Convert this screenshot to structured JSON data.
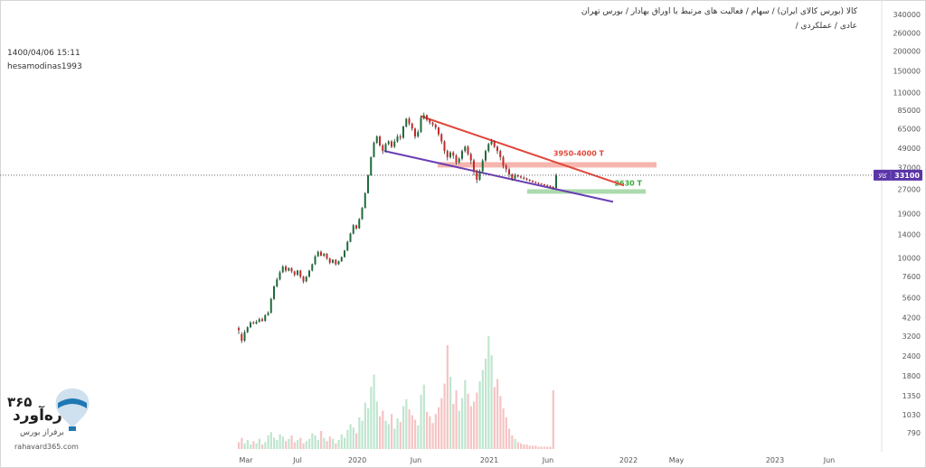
{
  "header": {
    "symbol_line": "کالا (بورس کالای ایران) / سهام / فعالیت های مرتبط با اوراق بهادار / بورس تهران",
    "sub_line": "عادی / عملکردی /",
    "datetime": "1400/04/06 15:11",
    "author": "hesamodinas1993"
  },
  "watermark": {
    "number": "۳۶۵",
    "brand": "ره‌آورد",
    "subtitle": "برفراز بورس",
    "url": "rahavard365.com"
  },
  "price_marker": {
    "tag": "کالا",
    "value": "33100"
  },
  "chart_data": {
    "type": "candlestick",
    "scale": "log",
    "ylim": [
      600,
      420000
    ],
    "y_ticks": [
      340000,
      260000,
      200000,
      150000,
      110000,
      85000,
      65000,
      49000,
      37000,
      27000,
      19000,
      14000,
      10000,
      7600,
      5600,
      4200,
      3200,
      2400,
      1800,
      1350,
      1030,
      790
    ],
    "x_ticks": [
      "Mar",
      "Jul",
      "2020",
      "Jun",
      "2021",
      "Jun",
      "2022",
      "May",
      "2023",
      "Jun"
    ],
    "last_price": 33100,
    "candles": [
      [
        3600,
        3500,
        3700,
        3300
      ],
      [
        3300,
        3000,
        3400,
        2900
      ],
      [
        3000,
        3400,
        3500,
        2950
      ],
      [
        3400,
        3650,
        3700,
        3350
      ],
      [
        3650,
        3900,
        4000,
        3600
      ],
      [
        3900,
        3850,
        4000,
        3800
      ],
      [
        3850,
        3950,
        4050,
        3800
      ],
      [
        3950,
        4100,
        4200,
        3900
      ],
      [
        4100,
        4000,
        4200,
        3950
      ],
      [
        4000,
        4350,
        4400,
        3950
      ],
      [
        4350,
        4500,
        4600,
        4300
      ],
      [
        4500,
        5500,
        5600,
        4450
      ],
      [
        5500,
        6600,
        6700,
        5400
      ],
      [
        6600,
        7300,
        7500,
        6500
      ],
      [
        7300,
        8100,
        8300,
        7200
      ],
      [
        8100,
        8800,
        9000,
        8000
      ],
      [
        8800,
        8300,
        9000,
        8100
      ],
      [
        8300,
        8600,
        8700,
        8200
      ],
      [
        8600,
        8200,
        8700,
        8000
      ],
      [
        8200,
        7800,
        8300,
        7600
      ],
      [
        7800,
        8300,
        8400,
        7700
      ],
      [
        8300,
        7600,
        8400,
        7400
      ],
      [
        7600,
        7100,
        7700,
        6900
      ],
      [
        7100,
        7600,
        7700,
        7000
      ],
      [
        7600,
        8300,
        8400,
        7500
      ],
      [
        8300,
        9100,
        9200,
        8200
      ],
      [
        9100,
        10200,
        10400,
        9000
      ],
      [
        10200,
        10900,
        11100,
        10100
      ],
      [
        10900,
        10300,
        11100,
        10200
      ],
      [
        10300,
        10600,
        10700,
        10100
      ],
      [
        10600,
        9900,
        10700,
        9700
      ],
      [
        9900,
        9300,
        10000,
        9100
      ],
      [
        9300,
        9700,
        9800,
        9200
      ],
      [
        9700,
        9100,
        9800,
        8900
      ],
      [
        9100,
        9500,
        9600,
        9000
      ],
      [
        9500,
        10100,
        10200,
        9400
      ],
      [
        10100,
        11100,
        11200,
        10000
      ],
      [
        11100,
        12600,
        12800,
        11000
      ],
      [
        12600,
        14200,
        14400,
        12500
      ],
      [
        14200,
        16000,
        16300,
        14000
      ],
      [
        16000,
        15300,
        16200,
        15000
      ],
      [
        15300,
        17500,
        17800,
        15200
      ],
      [
        17500,
        20600,
        20900,
        17300
      ],
      [
        20600,
        25500,
        25900,
        20400
      ],
      [
        25500,
        33000,
        33500,
        25300
      ],
      [
        33000,
        43000,
        43500,
        32800
      ],
      [
        43000,
        53000,
        54000,
        42800
      ],
      [
        53000,
        58000,
        59000,
        52000
      ],
      [
        58000,
        51000,
        59000,
        50000
      ],
      [
        51000,
        47000,
        52000,
        45000
      ],
      [
        47000,
        52000,
        53000,
        46000
      ],
      [
        52000,
        54000,
        55000,
        51000
      ],
      [
        54000,
        50000,
        55000,
        49000
      ],
      [
        50000,
        54000,
        56000,
        49000
      ],
      [
        54000,
        58000,
        60000,
        53000
      ],
      [
        58000,
        57000,
        60000,
        55000
      ],
      [
        57000,
        67000,
        68000,
        56000
      ],
      [
        67000,
        75000,
        76000,
        66000
      ],
      [
        75000,
        70000,
        77000,
        68000
      ],
      [
        70000,
        65000,
        71000,
        63000
      ],
      [
        65000,
        58000,
        66000,
        56000
      ],
      [
        58000,
        62000,
        64000,
        57000
      ],
      [
        62000,
        76000,
        78000,
        61000
      ],
      [
        76000,
        79000,
        82000,
        74000
      ],
      [
        79000,
        74000,
        80000,
        72000
      ],
      [
        74000,
        71000,
        75000,
        69000
      ],
      [
        71000,
        69000,
        72000,
        67000
      ],
      [
        69000,
        66000,
        70000,
        64000
      ],
      [
        66000,
        60000,
        67000,
        58000
      ],
      [
        60000,
        54000,
        61000,
        52000
      ],
      [
        54000,
        47000,
        55000,
        45000
      ],
      [
        47000,
        43000,
        48000,
        41000
      ],
      [
        43000,
        46000,
        47000,
        42000
      ],
      [
        46000,
        44000,
        47000,
        42000
      ],
      [
        44000,
        40000,
        45000,
        38500
      ],
      [
        40000,
        42000,
        43000,
        39000
      ],
      [
        42000,
        47000,
        48000,
        41000
      ],
      [
        47000,
        50000,
        51000,
        46000
      ],
      [
        50000,
        45000,
        51000,
        44000
      ],
      [
        45000,
        41000,
        46000,
        39000
      ],
      [
        41000,
        35000,
        42000,
        33000
      ],
      [
        35000,
        31000,
        36000,
        29500
      ],
      [
        31000,
        35000,
        36000,
        30500
      ],
      [
        35000,
        41000,
        42000,
        34500
      ],
      [
        41000,
        47000,
        48000,
        40000
      ],
      [
        47000,
        52000,
        53000,
        46000
      ],
      [
        52000,
        54000,
        56000,
        51000
      ],
      [
        54000,
        50000,
        55000,
        49000
      ],
      [
        50000,
        47000,
        51000,
        45000
      ],
      [
        47000,
        43000,
        48000,
        41000
      ],
      [
        43000,
        38000,
        44000,
        36500
      ],
      [
        38000,
        36000,
        39000,
        34500
      ],
      [
        36000,
        33500,
        37000,
        32000
      ],
      [
        33500,
        31500,
        34000,
        30500
      ],
      [
        31500,
        33000,
        34000,
        31000
      ],
      [
        33000,
        32500,
        33500,
        32000
      ],
      [
        32500,
        32000,
        33000,
        31500
      ],
      [
        32000,
        31500,
        32500,
        31000
      ],
      [
        31500,
        31000,
        32000,
        30600
      ],
      [
        31000,
        30500,
        31300,
        30100
      ],
      [
        30500,
        30000,
        30800,
        29700
      ],
      [
        30000,
        29600,
        30300,
        29300
      ],
      [
        29600,
        29300,
        29900,
        29000
      ],
      [
        29300,
        29000,
        29500,
        28700
      ],
      [
        29000,
        28700,
        29200,
        28400
      ],
      [
        28700,
        28400,
        28900,
        28100
      ],
      [
        28400,
        28000,
        28600,
        27600
      ],
      [
        28000,
        27500,
        28200,
        27000
      ],
      [
        27500,
        33100,
        34000,
        27200
      ]
    ],
    "volumes": [
      0.06,
      0.1,
      0.05,
      0.08,
      0.04,
      0.07,
      0.05,
      0.09,
      0.04,
      0.06,
      0.12,
      0.15,
      0.1,
      0.08,
      0.13,
      0.11,
      0.07,
      0.09,
      0.12,
      0.06,
      0.08,
      0.1,
      0.05,
      0.07,
      0.09,
      0.14,
      0.12,
      0.08,
      0.16,
      0.1,
      0.07,
      0.11,
      0.09,
      0.05,
      0.08,
      0.13,
      0.1,
      0.17,
      0.22,
      0.19,
      0.14,
      0.28,
      0.25,
      0.41,
      0.36,
      0.55,
      0.66,
      0.42,
      0.29,
      0.34,
      0.25,
      0.22,
      0.31,
      0.18,
      0.27,
      0.24,
      0.38,
      0.44,
      0.35,
      0.3,
      0.26,
      0.21,
      0.48,
      0.57,
      0.33,
      0.29,
      0.23,
      0.31,
      0.37,
      0.45,
      0.58,
      0.92,
      0.64,
      0.4,
      0.52,
      0.34,
      0.45,
      0.61,
      0.49,
      0.38,
      0.42,
      0.5,
      0.6,
      0.7,
      0.8,
      1.0,
      0.83,
      0.55,
      0.62,
      0.47,
      0.36,
      0.28,
      0.18,
      0.12,
      0.09,
      0.06,
      0.05,
      0.04,
      0.04,
      0.03,
      0.03,
      0.03,
      0.02,
      0.02,
      0.02,
      0.02,
      0.02,
      0.52
    ],
    "trendlines": [
      {
        "color": "#e0473a",
        "points": [
          [
            0,
            78000
          ],
          [
            1,
            28500
          ]
        ]
      },
      {
        "color": "#6b3fb3",
        "points": [
          [
            0,
            47000
          ],
          [
            1,
            22500
          ]
        ]
      }
    ],
    "zones": [
      {
        "label": "3950-4000 T",
        "low": 39500,
        "high": 40000,
        "color": "#f4a8a0",
        "text_color": "#e0473a"
      },
      {
        "label": "2630 T",
        "low": 26300,
        "high": 26300,
        "color": "#9ed39e",
        "text_color": "#3aa83a"
      }
    ]
  }
}
